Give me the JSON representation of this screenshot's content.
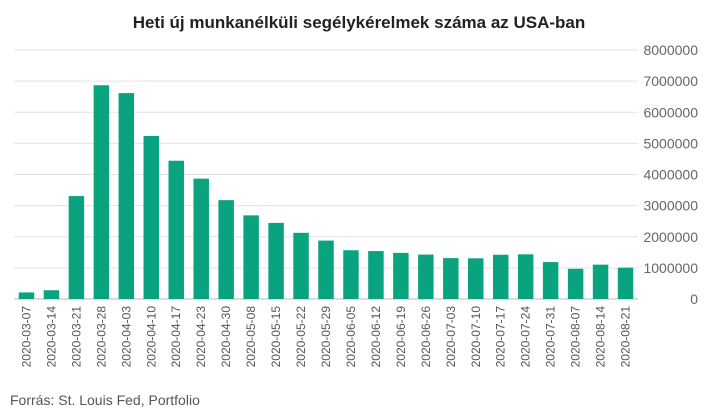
{
  "chart_data": {
    "type": "bar",
    "title": "Heti új munkanélküli segélykérelmek száma az USA-ban",
    "xlabel": "",
    "ylabel": "",
    "ylim": [
      0,
      8000000
    ],
    "yticks": [
      "0",
      "1000000",
      "2000000",
      "3000000",
      "4000000",
      "5000000",
      "6000000",
      "7000000",
      "8000000"
    ],
    "bar_color": "#0aa37f",
    "grid": true,
    "categories": [
      "2020-03-07",
      "2020-03-14",
      "2020-03-21",
      "2020-03-28",
      "2020-04-03",
      "2020-04-10",
      "2020-04-17",
      "2020-04-23",
      "2020-04-30",
      "2020-05-08",
      "2020-05-15",
      "2020-05-22",
      "2020-05-29",
      "2020-06-05",
      "2020-06-12",
      "2020-06-19",
      "2020-06-26",
      "2020-07-03",
      "2020-07-10",
      "2020-07-17",
      "2020-07-24",
      "2020-07-31",
      "2020-08-07",
      "2020-08-14",
      "2020-08-21"
    ],
    "values": [
      211000,
      282000,
      3307000,
      6867000,
      6615000,
      5237000,
      4442000,
      3867000,
      3176000,
      2687000,
      2446000,
      2126000,
      1877000,
      1566000,
      1540000,
      1482000,
      1427000,
      1314000,
      1307000,
      1422000,
      1435000,
      1186000,
      971000,
      1104000,
      1006000
    ]
  },
  "source": "Forrás: St. Louis Fed, Portfolio"
}
